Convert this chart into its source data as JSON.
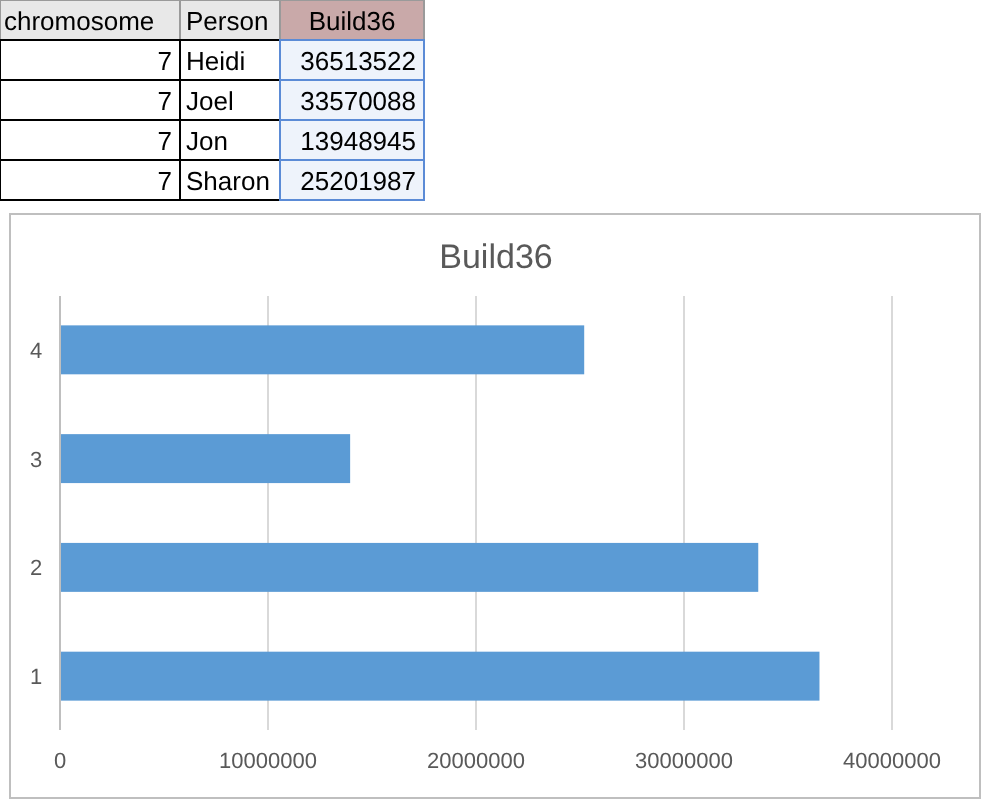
{
  "chart_data": {
    "type": "bar",
    "orientation": "horizontal",
    "title": "Build36",
    "categories": [
      "4",
      "3",
      "2",
      "1"
    ],
    "values": [
      25201987,
      13948945,
      33570088,
      36513522
    ],
    "color": "#5b9bd5",
    "xlim": [
      0,
      40000000
    ],
    "xticks": [
      0,
      10000000,
      20000000,
      30000000,
      40000000
    ],
    "grid": "x",
    "annotations": [
      "chromosome",
      "Person",
      "Build36",
      "7",
      "Heidi",
      "36513522",
      "7",
      "Joel",
      "33570088",
      "7",
      "Jon",
      "13948945",
      "7",
      "Sharon",
      "25201987"
    ]
  }
}
